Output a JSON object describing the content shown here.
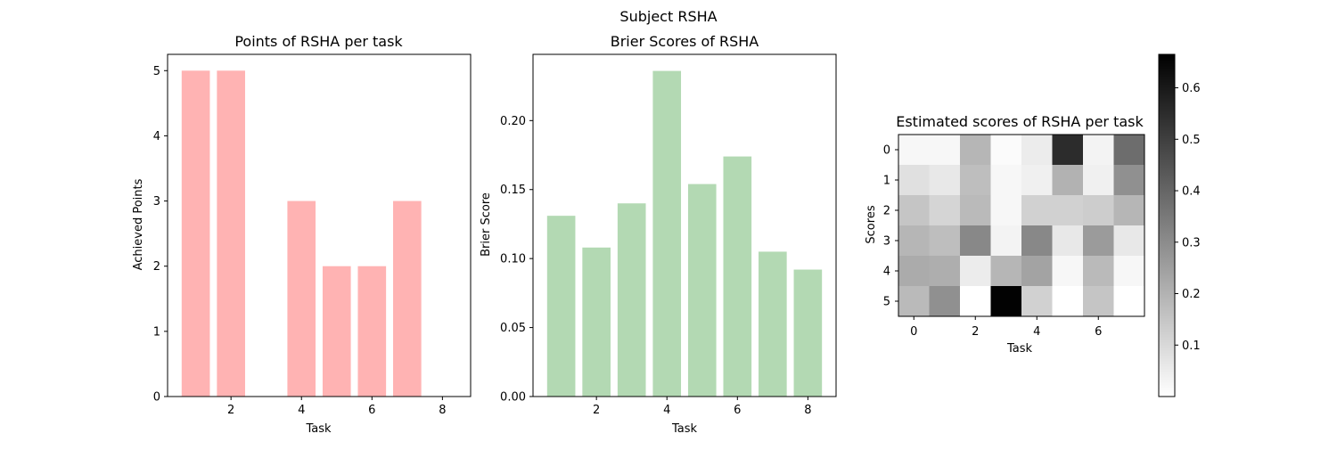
{
  "figure": {
    "suptitle": "Subject RSHA"
  },
  "chart_data": [
    {
      "type": "bar",
      "title": "Points of RSHA per task",
      "xlabel": "Task",
      "ylabel": "Achieved Points",
      "color": "#ffb3b3",
      "x": [
        1,
        2,
        3,
        4,
        5,
        6,
        7,
        8
      ],
      "values": [
        5,
        5,
        0,
        3,
        2,
        2,
        3,
        0
      ],
      "xlim": [
        0.2,
        8.8
      ],
      "ylim": [
        0,
        5.25
      ],
      "xticks": [
        2,
        4,
        6,
        8
      ],
      "yticks": [
        0,
        1,
        2,
        3,
        4,
        5
      ],
      "ytick_labels": [
        "0",
        "1",
        "2",
        "3",
        "4",
        "5"
      ]
    },
    {
      "type": "bar",
      "title": "Brier Scores of RSHA",
      "xlabel": "Task",
      "ylabel": "Brier Score",
      "color": "#b3d9b3",
      "x": [
        1,
        2,
        3,
        4,
        5,
        6,
        7,
        8
      ],
      "values": [
        0.131,
        0.108,
        0.14,
        0.236,
        0.154,
        0.174,
        0.105,
        0.092
      ],
      "xlim": [
        0.2,
        8.8
      ],
      "ylim": [
        0,
        0.248
      ],
      "xticks": [
        2,
        4,
        6,
        8
      ],
      "yticks": [
        0,
        0.05,
        0.1,
        0.15,
        0.2
      ],
      "ytick_labels": [
        "0.00",
        "0.05",
        "0.10",
        "0.15",
        "0.20"
      ]
    },
    {
      "type": "heatmap",
      "title": "Estimated scores of RSHA per task",
      "xlabel": "Task",
      "ylabel": "Scores",
      "colormap": "gray_r",
      "vmin": 0,
      "vmax": 0.665,
      "xticks": [
        0,
        2,
        4,
        6
      ],
      "yticks": [
        0,
        1,
        2,
        3,
        4,
        5
      ],
      "matrix": [
        [
          0.02,
          0.02,
          0.19,
          0.01,
          0.05,
          0.55,
          0.03,
          0.38
        ],
        [
          0.08,
          0.06,
          0.17,
          0.02,
          0.04,
          0.2,
          0.04,
          0.29
        ],
        [
          0.15,
          0.11,
          0.18,
          0.02,
          0.12,
          0.12,
          0.13,
          0.19
        ],
        [
          0.19,
          0.17,
          0.31,
          0.03,
          0.31,
          0.06,
          0.26,
          0.06
        ],
        [
          0.22,
          0.21,
          0.05,
          0.19,
          0.24,
          0.02,
          0.18,
          0.02
        ],
        [
          0.18,
          0.29,
          0.0,
          0.66,
          0.12,
          0.0,
          0.15,
          0.0
        ]
      ],
      "colorbar_ticks": [
        0.1,
        0.2,
        0.3,
        0.4,
        0.5,
        0.6
      ],
      "colorbar_tick_labels": [
        "0.1",
        "0.2",
        "0.3",
        "0.4",
        "0.5",
        "0.6"
      ]
    }
  ]
}
